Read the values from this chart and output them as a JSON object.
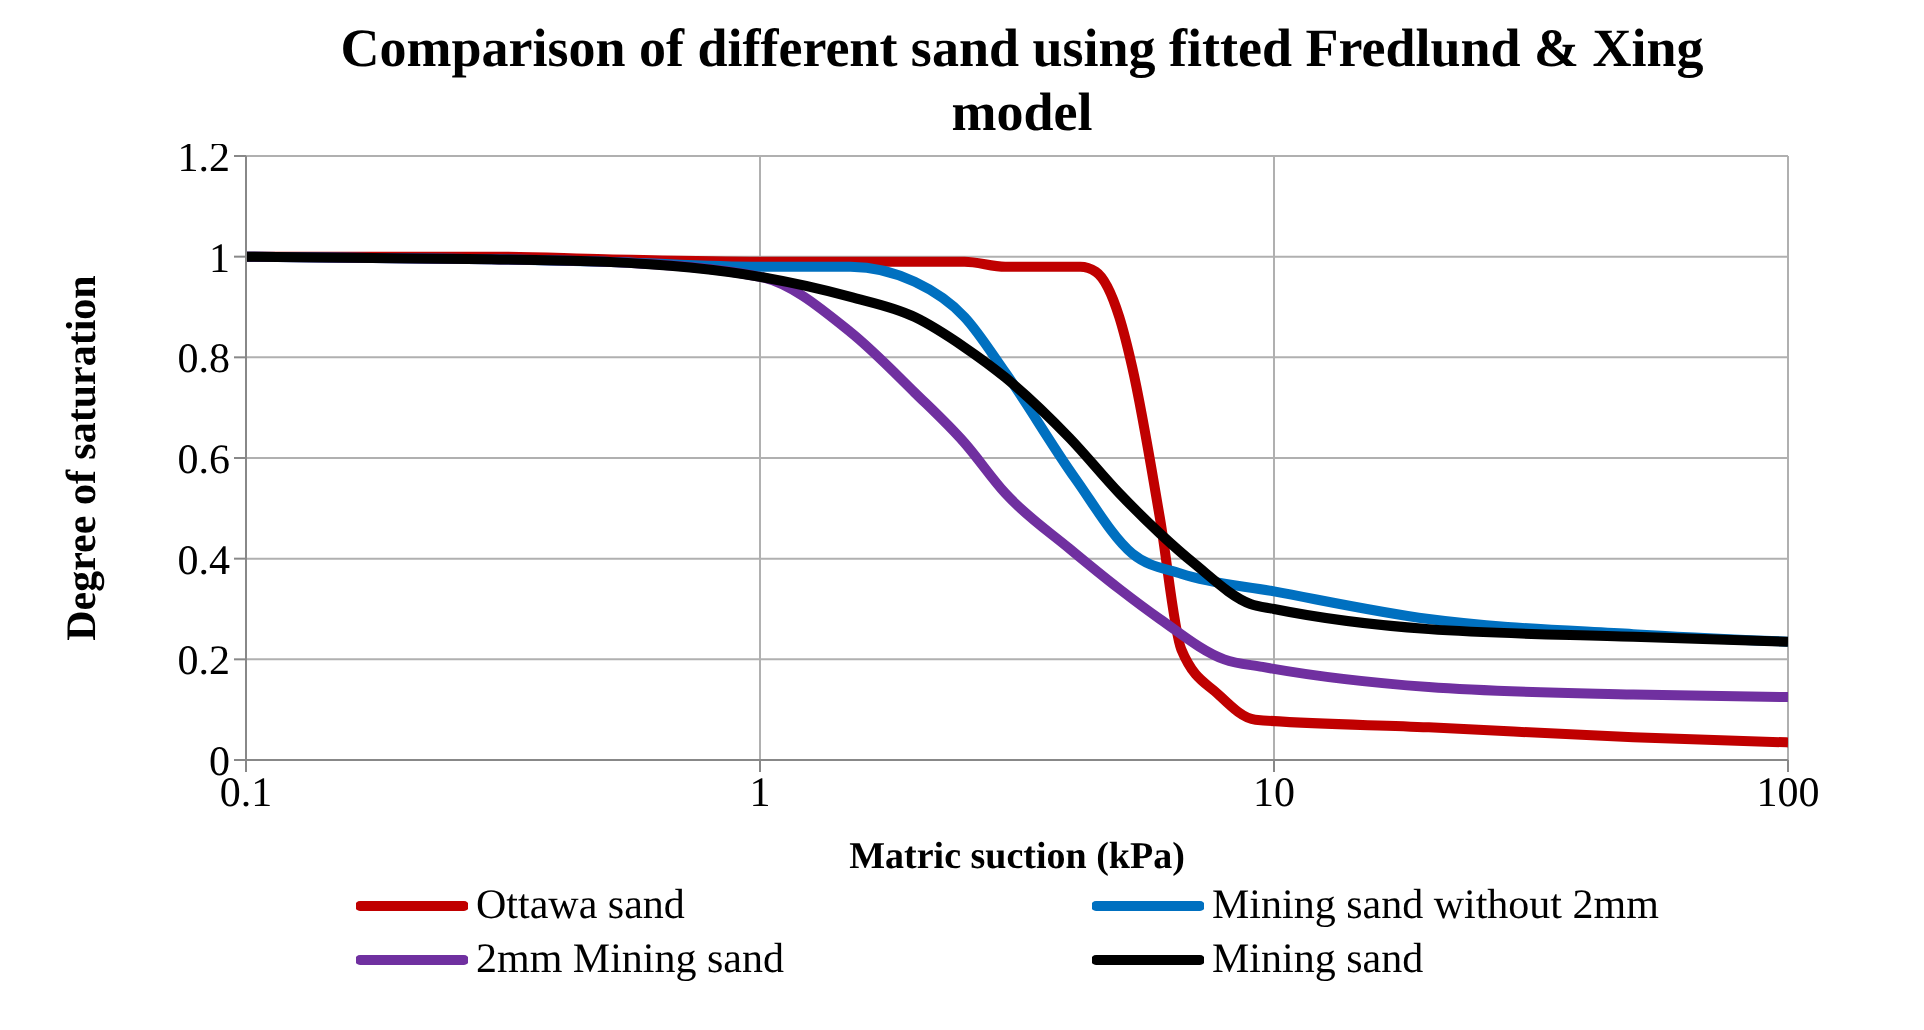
{
  "chart_data": {
    "type": "line",
    "title": "Comparison of different sand using fitted Fredlund & Xing model",
    "xlabel": "Matric suction (kPa)",
    "ylabel": "Degree of saturation",
    "log": "x",
    "xlim": [
      0.1,
      100
    ],
    "xticks": [
      0.1,
      1,
      10,
      100
    ],
    "ylim": [
      0,
      1.2
    ],
    "yticks": [
      0,
      0.2,
      0.4,
      0.6,
      0.8,
      1,
      1.2
    ],
    "grid": true,
    "legend": "bottom",
    "marker": "none",
    "line_style": "solid",
    "series": [
      {
        "name": "Ottawa sand",
        "color": "#c00000",
        "x": [
          0.1,
          0.3,
          0.5,
          1,
          2,
          2.5,
          3,
          3.5,
          4.2,
          4.5,
          5,
          5.3,
          6,
          6.6,
          7.8,
          9.2,
          20,
          50,
          100
        ],
        "values": [
          1,
          1,
          0.995,
          0.99,
          0.99,
          0.99,
          0.98,
          0.98,
          0.98,
          0.97,
          0.88,
          0.78,
          0.48,
          0.22,
          0.13,
          0.08,
          0.065,
          0.045,
          0.035
        ]
      },
      {
        "name": "Mining sand without 2mm",
        "color": "#0070c0",
        "x": [
          0.1,
          0.3,
          0.5,
          1,
          1.5,
          2,
          2.5,
          3,
          4.1,
          5.3,
          6.6,
          10,
          20,
          50,
          100
        ],
        "values": [
          1,
          0.995,
          0.99,
          0.98,
          0.98,
          0.95,
          0.88,
          0.77,
          0.56,
          0.41,
          0.37,
          0.335,
          0.28,
          0.25,
          0.235
        ]
      },
      {
        "name": "2mm Mining sand",
        "color": "#7030a0",
        "x": [
          0.1,
          0.3,
          0.5,
          1,
          1.5,
          2,
          2.5,
          3,
          4,
          5,
          6,
          8,
          9.5,
          20,
          50,
          100
        ],
        "values": [
          1,
          0.995,
          0.99,
          0.96,
          0.85,
          0.73,
          0.63,
          0.53,
          0.42,
          0.34,
          0.28,
          0.2,
          0.185,
          0.145,
          0.13,
          0.125
        ]
      },
      {
        "name": "Mining sand",
        "color": "#000000",
        "x": [
          0.1,
          0.3,
          0.5,
          1,
          1.5,
          2,
          2.5,
          3,
          4,
          5,
          6,
          7,
          9,
          10,
          20,
          50,
          100
        ],
        "values": [
          1,
          0.995,
          0.99,
          0.96,
          0.92,
          0.88,
          0.82,
          0.76,
          0.64,
          0.53,
          0.45,
          0.39,
          0.31,
          0.3,
          0.26,
          0.245,
          0.235
        ]
      }
    ]
  }
}
